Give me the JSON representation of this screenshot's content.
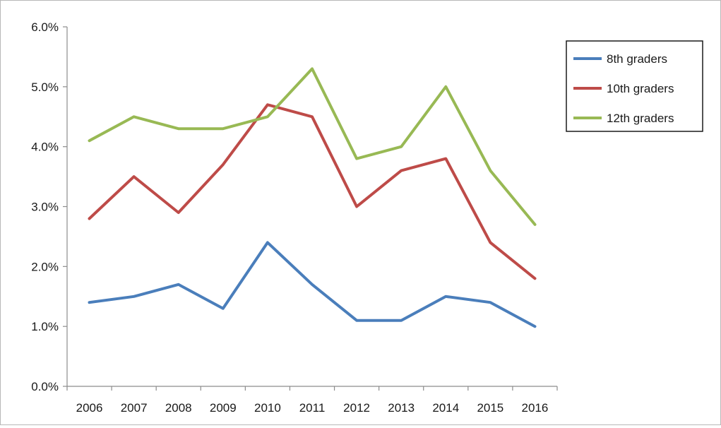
{
  "chart_data": {
    "type": "line",
    "title": "",
    "xlabel": "",
    "ylabel": "",
    "x": [
      "2006",
      "2007",
      "2008",
      "2009",
      "2010",
      "2011",
      "2012",
      "2013",
      "2014",
      "2015",
      "2016"
    ],
    "ylim": [
      0,
      6
    ],
    "yticks": [
      0,
      1,
      2,
      3,
      4,
      5,
      6
    ],
    "ytick_labels": [
      "0.0%",
      "1.0%",
      "2.0%",
      "3.0%",
      "4.0%",
      "5.0%",
      "6.0%"
    ],
    "y_unit": "%",
    "grid": false,
    "legend_position": "top-right",
    "series": [
      {
        "name": "8th graders",
        "color": "#4a7ebb",
        "values": [
          1.4,
          1.5,
          1.7,
          1.3,
          2.4,
          1.7,
          1.1,
          1.1,
          1.5,
          1.4,
          1.0
        ]
      },
      {
        "name": "10th graders",
        "color": "#be4b48",
        "values": [
          2.8,
          3.5,
          2.9,
          3.7,
          4.7,
          4.5,
          3.0,
          3.6,
          3.8,
          2.4,
          1.8
        ]
      },
      {
        "name": "12th graders",
        "color": "#98b954",
        "values": [
          4.1,
          4.5,
          4.3,
          4.3,
          4.5,
          5.3,
          3.8,
          4.0,
          5.0,
          3.6,
          2.7
        ]
      }
    ]
  }
}
